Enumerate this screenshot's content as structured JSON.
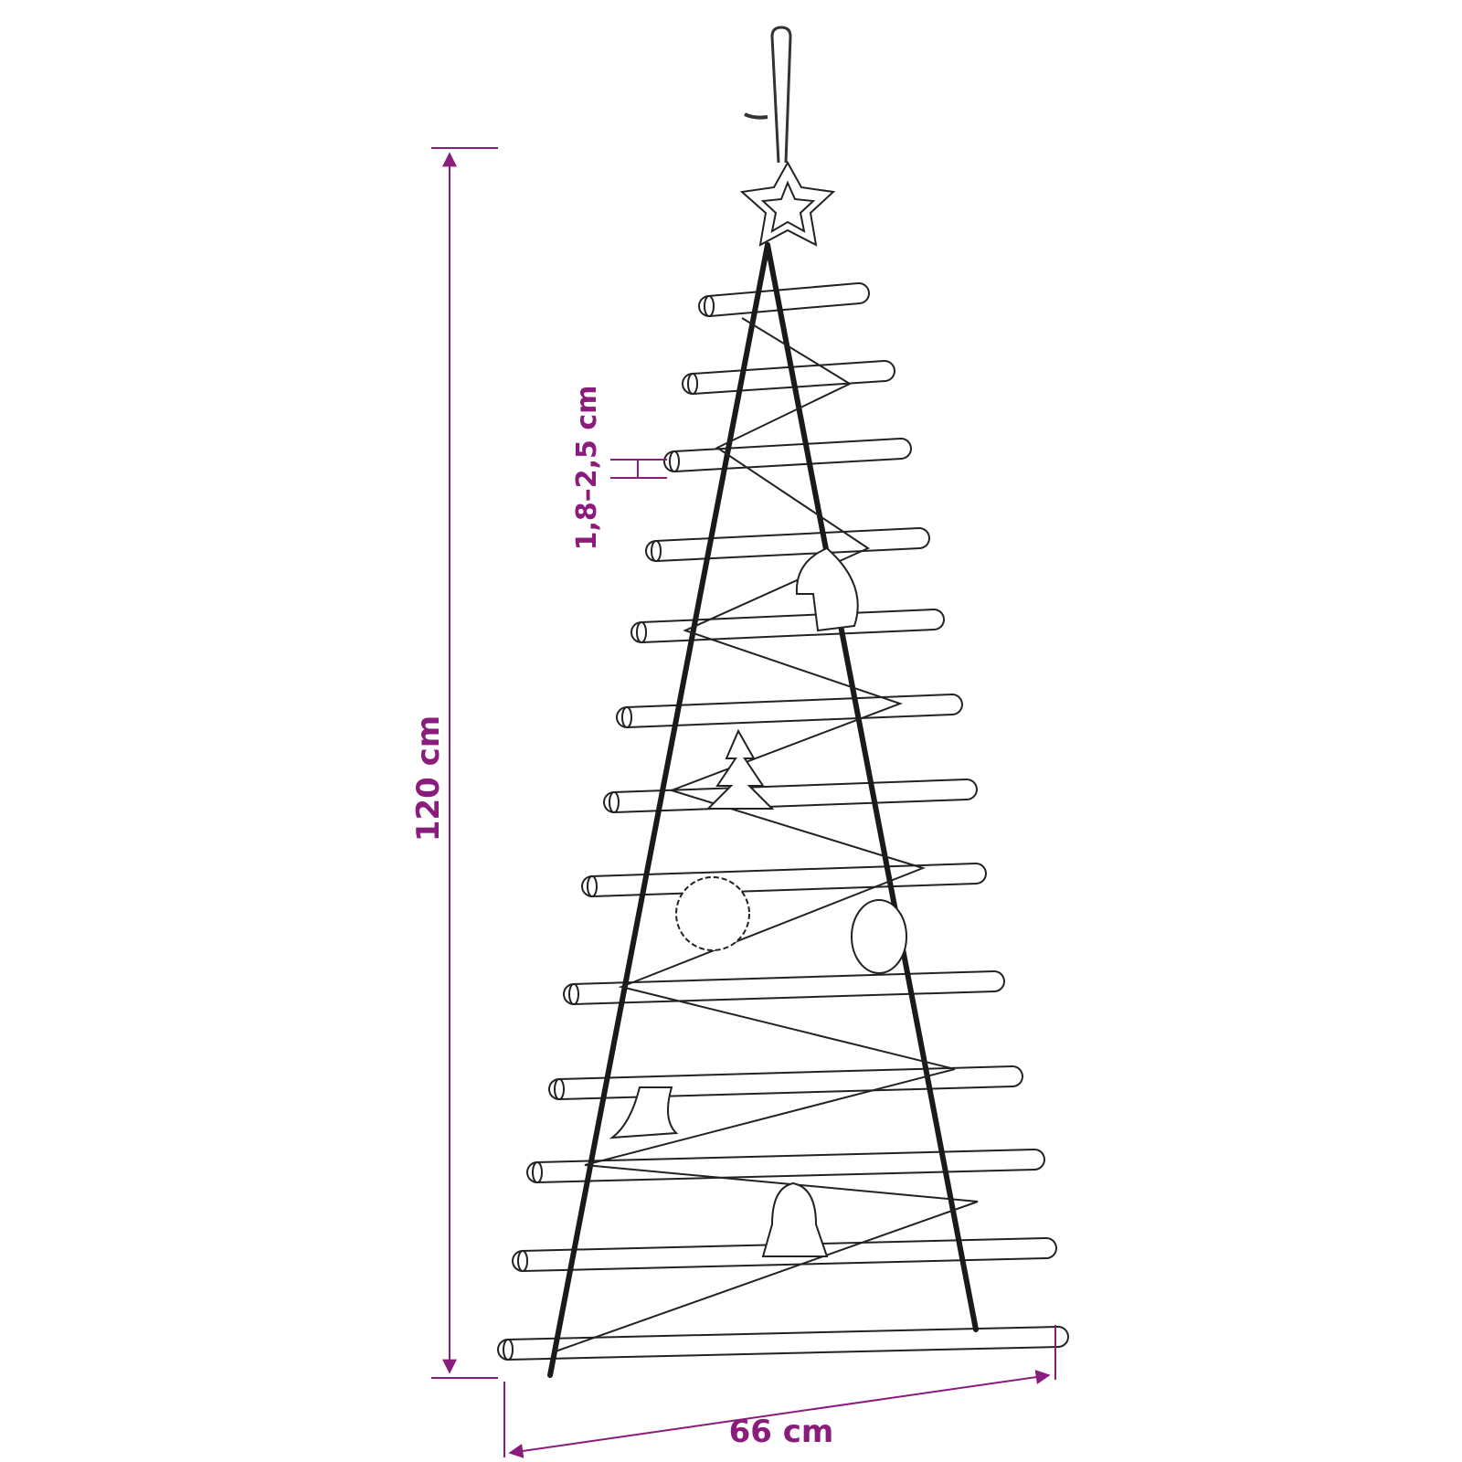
{
  "dimensions": {
    "height": "120 cm",
    "width": "66 cm",
    "stick_diameter": "1,8–2,5 cm"
  }
}
